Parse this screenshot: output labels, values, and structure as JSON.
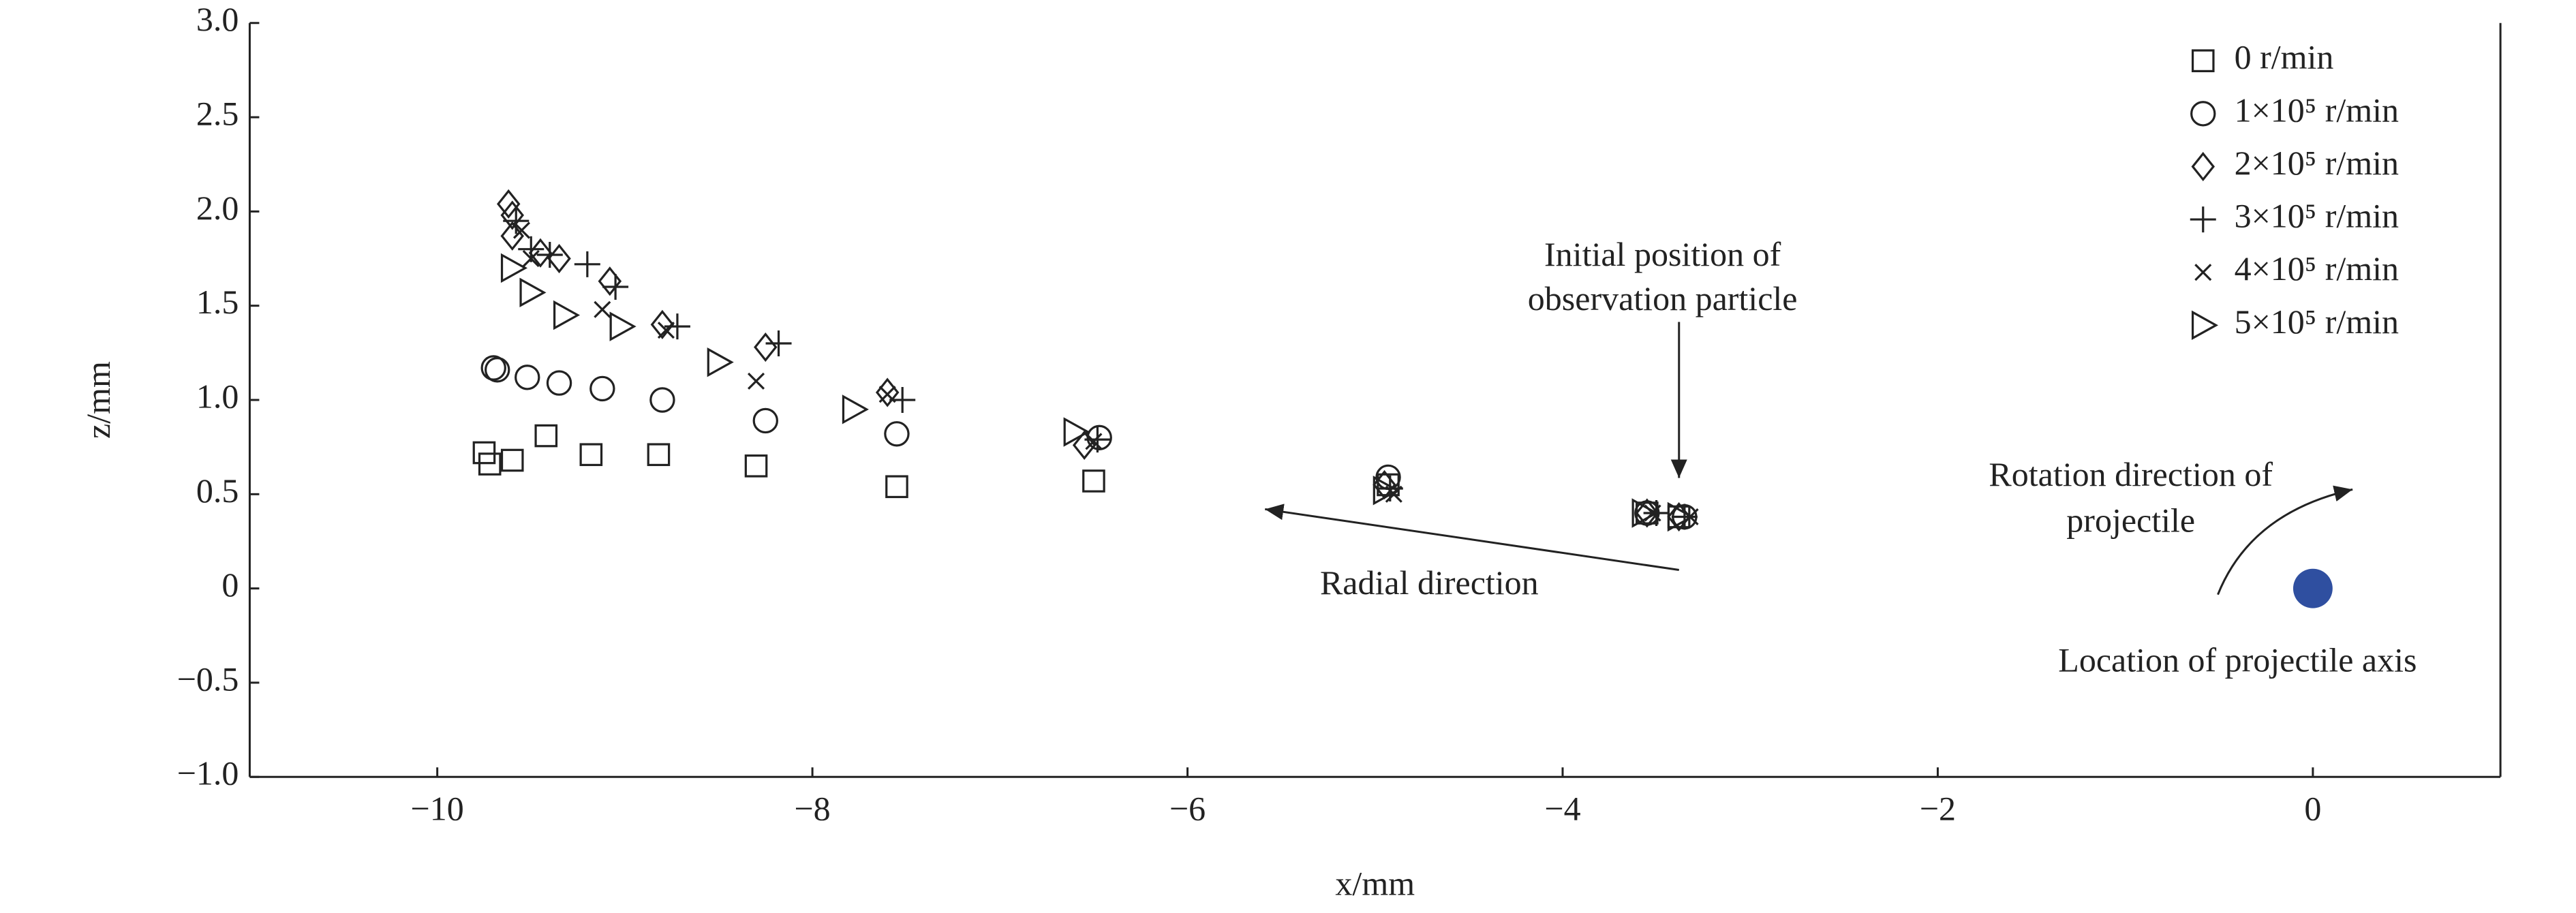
{
  "chart_data": {
    "type": "scatter",
    "xlabel": "x/mm",
    "ylabel": "z/mm",
    "xlim": [
      -11,
      1
    ],
    "ylim": [
      -1,
      3
    ],
    "xticks": [
      {
        "value": -10,
        "label": "−10"
      },
      {
        "value": -8,
        "label": "−8"
      },
      {
        "value": -6,
        "label": "−6"
      },
      {
        "value": -4,
        "label": "−4"
      },
      {
        "value": -2,
        "label": "−2"
      },
      0
    ],
    "yticks": [
      {
        "value": -1,
        "label": "−1.0"
      },
      {
        "value": -0.5,
        "label": "−0.5"
      },
      0,
      {
        "value": 0.5,
        "label": "0.5"
      },
      {
        "value": 1,
        "label": "1.0"
      },
      {
        "value": 1.5,
        "label": "1.5"
      },
      {
        "value": 2,
        "label": "2.0"
      },
      {
        "value": 2.5,
        "label": "2.5"
      },
      {
        "value": 3,
        "label": "3.0"
      }
    ],
    "legend": "upper right",
    "series": [
      {
        "name": "0 r/min",
        "marker": "square",
        "color": "#222222",
        "x": [
          -9.75,
          -9.72,
          -9.6,
          -9.42,
          -9.18,
          -8.82,
          -8.3,
          -7.55,
          -6.5,
          -4.93,
          -3.55,
          -3.38
        ],
        "y": [
          0.72,
          0.66,
          0.68,
          0.81,
          0.71,
          0.71,
          0.65,
          0.54,
          0.57,
          0.55,
          0.4,
          0.38
        ]
      },
      {
        "name": "1×10⁵ r/min",
        "marker": "circle",
        "color": "#222222",
        "x": [
          -9.7,
          -9.68,
          -9.52,
          -9.35,
          -9.12,
          -8.8,
          -8.25,
          -7.55,
          -6.47,
          -4.93,
          -3.55,
          -3.35
        ],
        "y": [
          1.17,
          1.16,
          1.12,
          1.09,
          1.06,
          1.0,
          0.89,
          0.82,
          0.8,
          0.59,
          0.4,
          0.38
        ]
      },
      {
        "name": "2×10⁵ r/min",
        "marker": "diamond",
        "color": "#222222",
        "x": [
          -9.62,
          -9.6,
          -9.6,
          -9.45,
          -9.35,
          -9.08,
          -8.8,
          -8.25,
          -7.6,
          -6.55,
          -4.95,
          -3.55,
          -3.38
        ],
        "y": [
          2.04,
          1.98,
          1.87,
          1.78,
          1.75,
          1.63,
          1.4,
          1.28,
          1.04,
          0.76,
          0.55,
          0.4,
          0.38
        ]
      },
      {
        "name": "3×10⁵ r/min",
        "marker": "plus",
        "color": "#222222",
        "x": [
          -9.58,
          -9.5,
          -9.4,
          -9.2,
          -9.05,
          -8.72,
          -8.18,
          -7.52,
          -6.48,
          -4.92,
          -3.5,
          -3.35
        ],
        "y": [
          1.95,
          1.8,
          1.77,
          1.72,
          1.6,
          1.39,
          1.3,
          1.0,
          0.79,
          0.53,
          0.4,
          0.38
        ]
      },
      {
        "name": "4×10⁵ r/min",
        "marker": "x",
        "color": "#222222",
        "x": [
          -9.55,
          -9.5,
          -9.12,
          -8.78,
          -8.3,
          -7.6,
          -6.5,
          -4.9,
          -3.52,
          -3.32
        ],
        "y": [
          1.9,
          1.75,
          1.48,
          1.37,
          1.1,
          1.03,
          0.78,
          0.5,
          0.4,
          0.38
        ]
      },
      {
        "name": "5×10⁵ r/min",
        "marker": "triangle-right",
        "color": "#222222",
        "x": [
          -9.6,
          -9.5,
          -9.32,
          -9.02,
          -8.5,
          -7.78,
          -6.6,
          -4.95,
          -3.57,
          -3.38
        ],
        "y": [
          1.7,
          1.57,
          1.45,
          1.39,
          1.2,
          0.95,
          0.83,
          0.52,
          0.4,
          0.38
        ]
      }
    ],
    "axis_point": {
      "x": 0,
      "y": 0,
      "color": "#2f4fa0"
    },
    "annotations": {
      "initial_position": [
        "Initial position of",
        "observation particle"
      ],
      "radial_direction": "Radial direction",
      "rotation_direction": [
        "Rotation direction of",
        "projectile"
      ],
      "axis_location": "Location of projectile axis"
    }
  }
}
